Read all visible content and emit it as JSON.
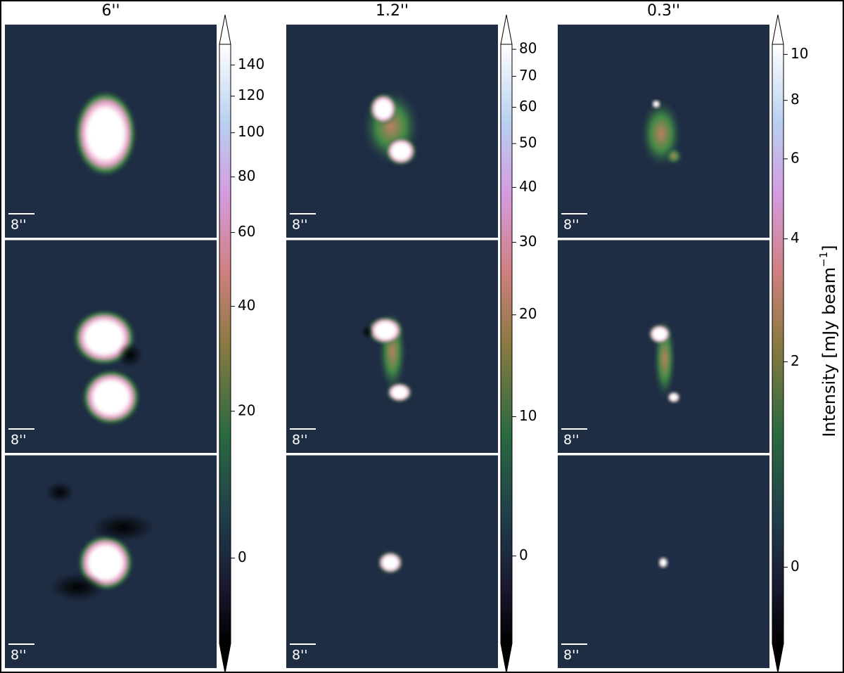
{
  "figure": {
    "colorbar_label": {
      "text": "Intensity [mJy beam",
      "superscript": "−1",
      "close": "]"
    },
    "columns": [
      {
        "title": "6''",
        "colorbar": {
          "zlim": [
            -11,
            155
          ],
          "ticks": [
            0,
            20,
            40,
            60,
            80,
            100,
            120,
            140
          ]
        },
        "panels": [
          {
            "scalebar": "8''"
          },
          {
            "scalebar": "8''"
          },
          {
            "scalebar": "8''"
          }
        ]
      },
      {
        "title": "1.2''",
        "colorbar": {
          "zlim": [
            -6,
            82
          ],
          "ticks": [
            0,
            10,
            20,
            30,
            40,
            50,
            60,
            70,
            80
          ]
        },
        "panels": [
          {
            "scalebar": "8''"
          },
          {
            "scalebar": "8''"
          },
          {
            "scalebar": "8''"
          }
        ]
      },
      {
        "title": "0.3''",
        "colorbar": {
          "zlim": [
            -0.65,
            10.5
          ],
          "ticks": [
            0,
            2,
            4,
            6,
            8,
            10
          ]
        },
        "panels": [
          {
            "scalebar": "8''"
          },
          {
            "scalebar": "8''"
          },
          {
            "scalebar": "8''"
          }
        ]
      }
    ]
  }
}
